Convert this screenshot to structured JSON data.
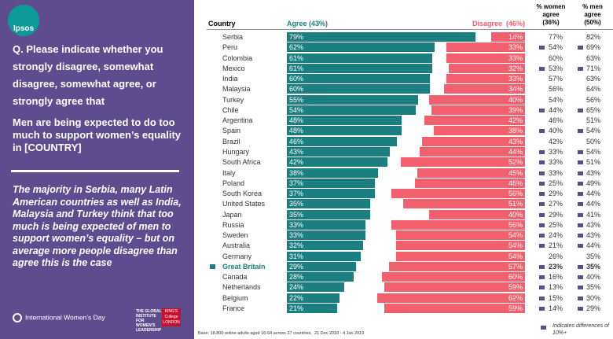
{
  "logo": "Ipsos",
  "question": "Q. Please indicate whether you strongly disagree, somewhat disagree, somewhat agree, or strongly agree that",
  "statement": "Men are being expected to do too much to support women’s equality in [COUNTRY]",
  "commentary": "The majority in Serbia, many Latin American countries as well as India, Malaysia and Turkey think that too much is being expected of men to support women’s equality – but on average more people disagree than agree this is the case",
  "footer_logos": [
    "International Women’s Day",
    "THE GLOBAL INSTITUTE FOR WOMEN’S LEADERSHIP",
    "KING’S College LONDON"
  ],
  "chart_data": {
    "type": "bar",
    "column_header": "Country",
    "categories": [
      "Serbia",
      "Peru",
      "Colombia",
      "Mexico",
      "India",
      "Malaysia",
      "Turkey",
      "Chile",
      "Argentina",
      "Spain",
      "Brazil",
      "Hungary",
      "South Africa",
      "Italy",
      "Poland",
      "South Korea",
      "United States",
      "Japan",
      "Russia",
      "Sweden",
      "Australia",
      "Germany",
      "Great Britain",
      "Canada",
      "Netherlands",
      "Belgium",
      "France"
    ],
    "highlight": "Great Britain",
    "series": [
      {
        "name": "Agree (43%)",
        "color": "#1b7e80",
        "values": [
          79,
          62,
          61,
          61,
          60,
          60,
          55,
          54,
          48,
          48,
          46,
          43,
          42,
          38,
          37,
          37,
          35,
          35,
          33,
          33,
          32,
          31,
          29,
          28,
          24,
          22,
          21
        ],
        "value_labels": [
          "79%",
          "62%",
          "61%",
          "61%",
          "60%",
          "60%",
          "55%",
          "54%",
          "48%",
          "48%",
          "46%",
          "43%",
          "42%",
          "38%",
          "37%",
          "37%",
          "35%",
          "35%",
          "33%",
          "33%",
          "32%",
          "31%",
          "29%",
          "28%",
          "24%",
          "22%",
          "21%"
        ]
      },
      {
        "name": "Disagree  (46%)",
        "color": "#f2606e",
        "values": [
          14,
          33,
          33,
          32,
          33,
          34,
          40,
          39,
          42,
          38,
          43,
          44,
          52,
          45,
          46,
          56,
          51,
          40,
          56,
          54,
          54,
          54,
          57,
          60,
          59,
          62,
          59
        ],
        "value_labels": [
          "14%",
          "33%",
          "33%",
          "32%",
          "33%",
          "34%",
          "40%",
          "39%",
          "42%",
          "38%",
          "43%",
          "44%",
          "52%",
          "45%",
          "46%",
          "56%",
          "51%",
          "40%",
          "56%",
          "54%",
          "54%",
          "54%",
          "57%",
          "60%",
          "59%",
          "62%",
          "59%"
        ]
      }
    ],
    "columns": [
      {
        "name": "% women agree (36%)",
        "values": [
          77,
          54,
          60,
          53,
          57,
          56,
          54,
          44,
          46,
          40,
          42,
          33,
          33,
          33,
          25,
          29,
          27,
          29,
          25,
          24,
          21,
          26,
          23,
          16,
          13,
          15,
          14
        ],
        "value_labels": [
          "77%",
          "54%",
          "60%",
          "53%",
          "57%",
          "56%",
          "54%",
          "44%",
          "46%",
          "40%",
          "42%",
          "33%",
          "33%",
          "33%",
          "25%",
          "29%",
          "27%",
          "29%",
          "25%",
          "24%",
          "21%",
          "26%",
          "23%",
          "16%",
          "13%",
          "15%",
          "14%"
        ]
      },
      {
        "name": "% men agree (50%)",
        "values": [
          82,
          69,
          63,
          71,
          63,
          64,
          56,
          65,
          51,
          54,
          50,
          54,
          51,
          43,
          49,
          44,
          44,
          41,
          43,
          43,
          44,
          35,
          35,
          40,
          35,
          30,
          29
        ],
        "value_labels": [
          "82%",
          "69%",
          "63%",
          "71%",
          "63%",
          "64%",
          "56%",
          "65%",
          "51%",
          "54%",
          "50%",
          "54%",
          "51%",
          "43%",
          "49%",
          "44%",
          "44%",
          "41%",
          "43%",
          "43%",
          "44%",
          "35%",
          "35%",
          "40%",
          "35%",
          "30%",
          "29%"
        ]
      }
    ],
    "diff_flags": [
      false,
      true,
      false,
      true,
      false,
      false,
      false,
      true,
      false,
      true,
      false,
      true,
      true,
      true,
      true,
      true,
      true,
      true,
      true,
      true,
      true,
      false,
      true,
      true,
      true,
      true,
      true
    ],
    "diff_color": "#5e4c8e",
    "diff_legend": "Indicates differences of 10%+",
    "note": "Base: 18,800 online adults aged 16-64 across 27 countries,  21 Dec 2018 - 4 Jan 2019"
  }
}
